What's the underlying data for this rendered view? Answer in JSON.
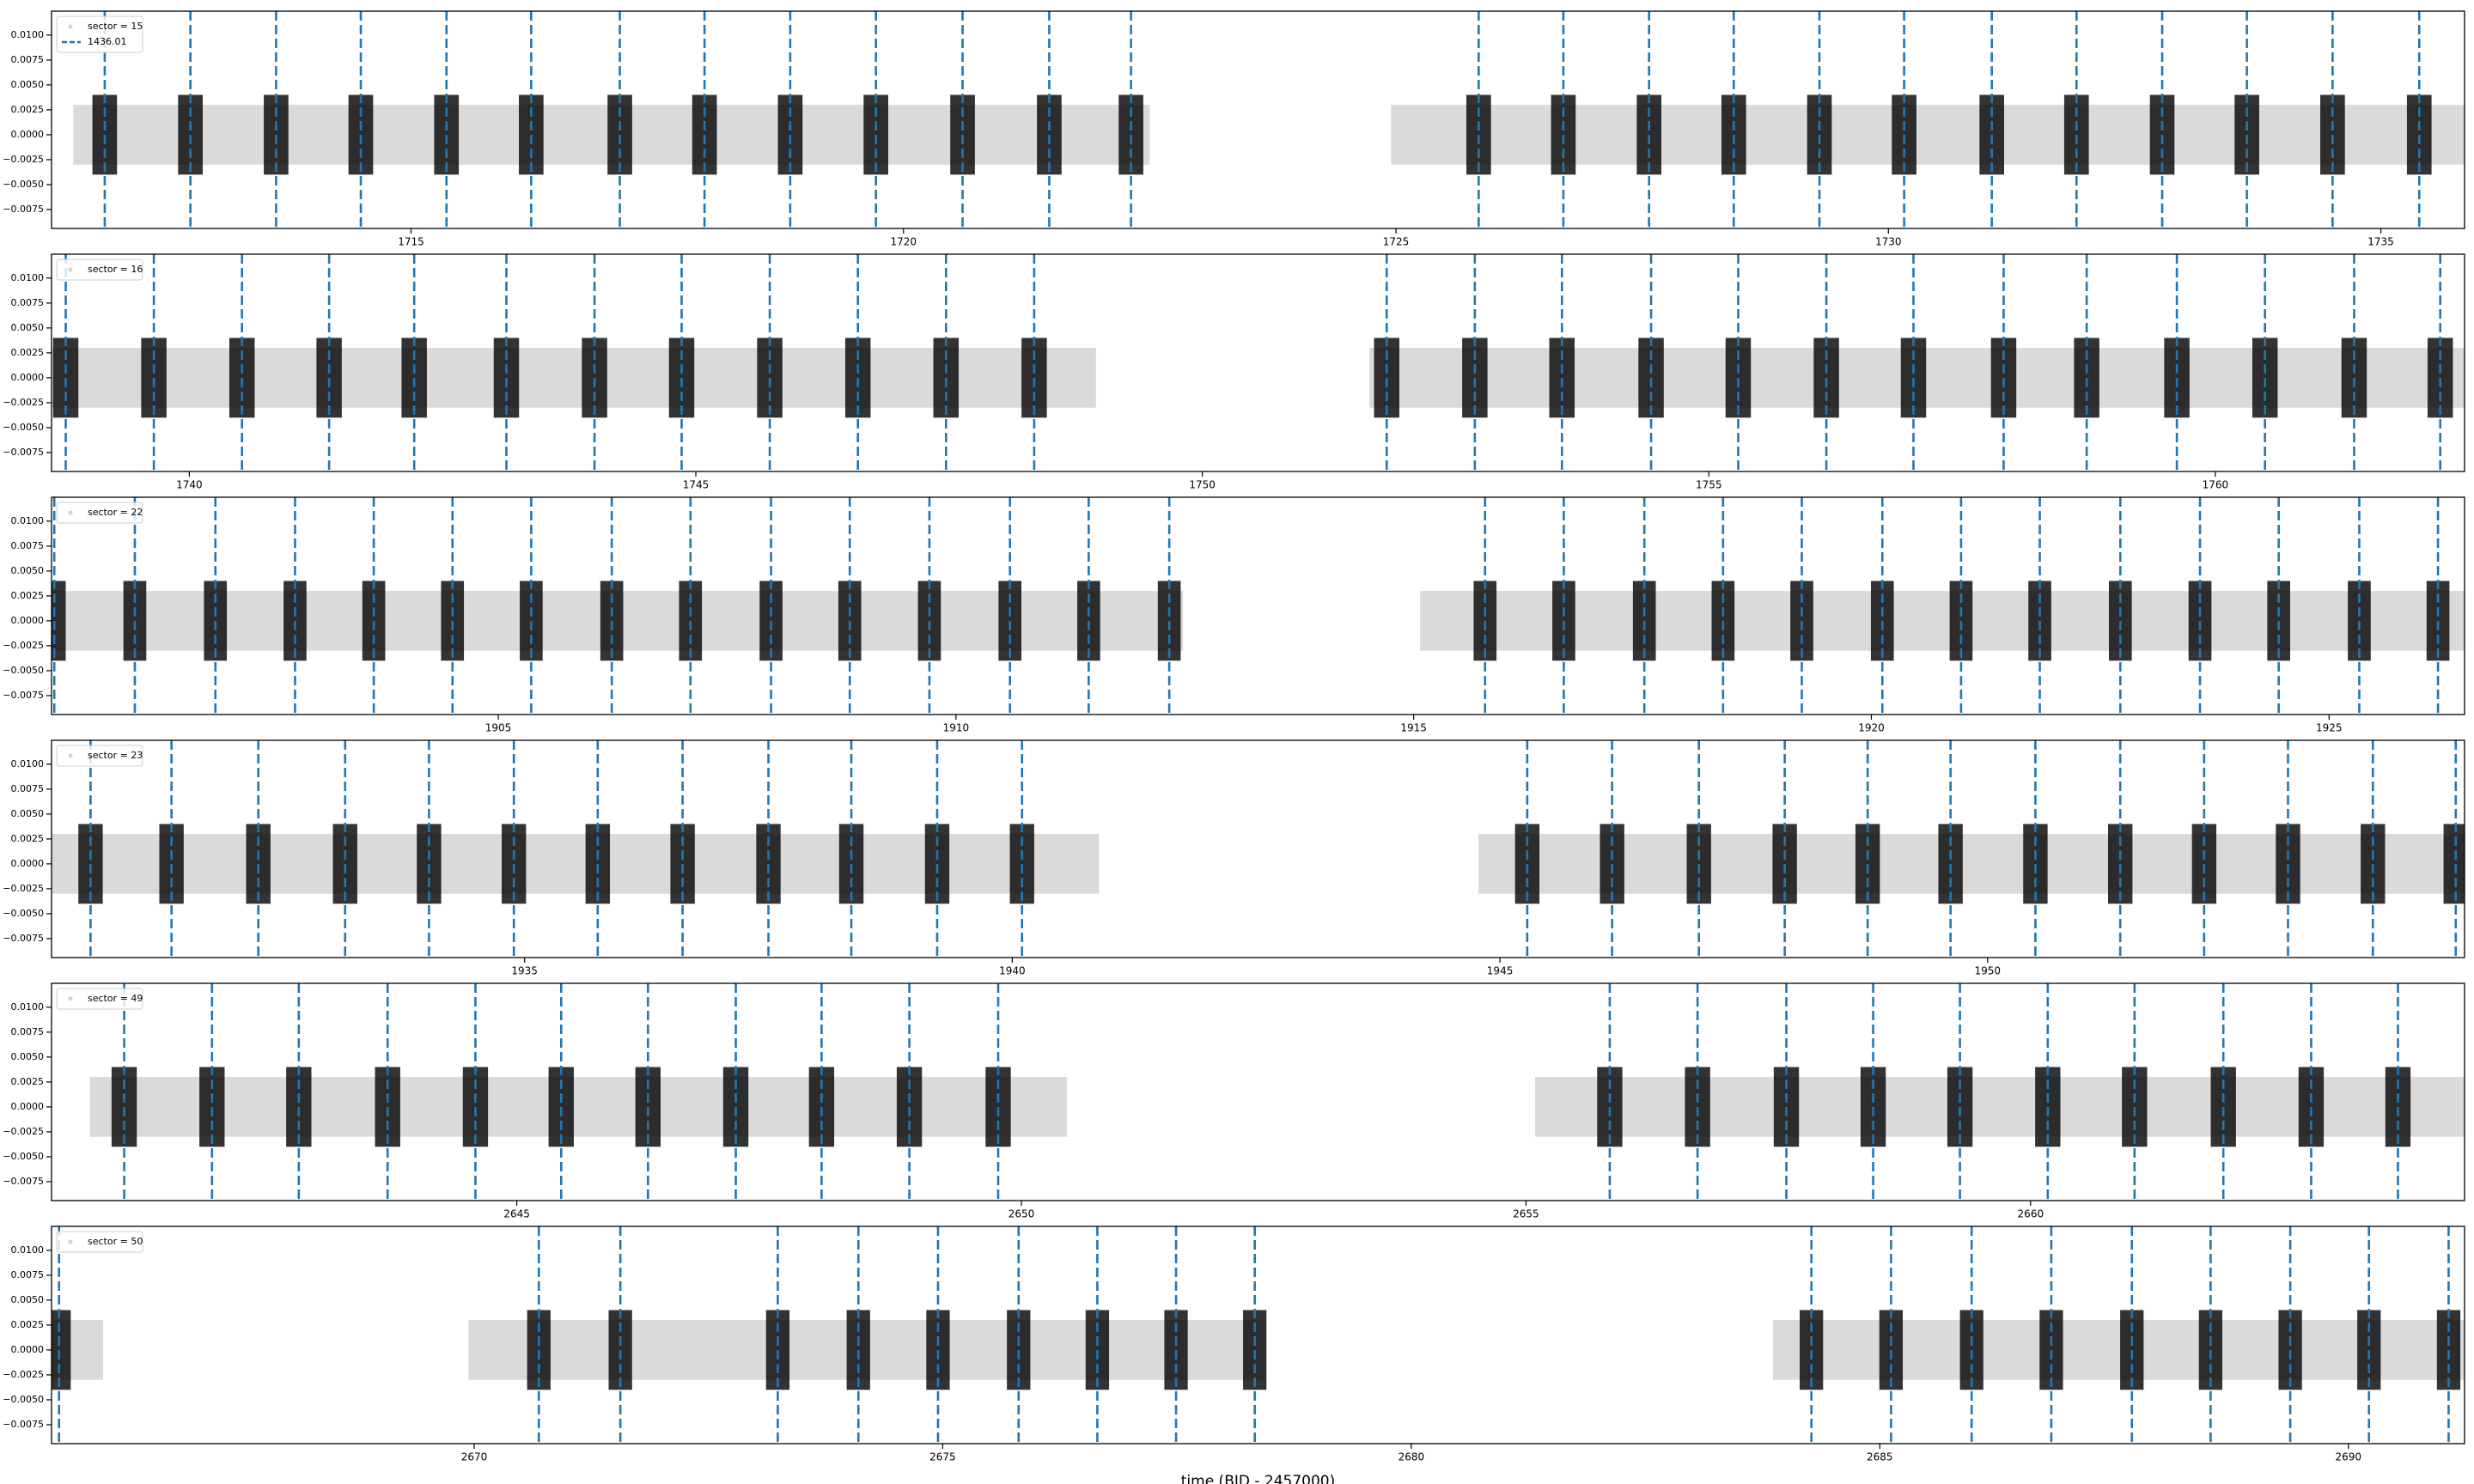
{
  "chart_data": [
    {
      "type": "scatter",
      "series": [
        {
          "name": "sector = 15",
          "color": "#d3d3d3",
          "segments": [
            [
              1711.57,
              1722.5
            ],
            [
              1724.95,
              1735.85
            ]
          ],
          "range": [
            -0.003,
            0.003
          ]
        }
      ],
      "transits": {
        "name": "1436.01",
        "color": "#1f77b4",
        "values": [
          1711.89,
          1712.76,
          1713.63,
          1714.49,
          1715.36,
          1716.22,
          1717.12,
          1717.98,
          1718.85,
          1719.72,
          1720.6,
          1721.48,
          1722.31,
          1725.84,
          1726.7,
          1727.57,
          1728.43,
          1729.3,
          1730.16,
          1731.05,
          1731.91,
          1732.78,
          1733.64,
          1734.51,
          1735.39
        ]
      },
      "in_transit": {
        "color": "#000000",
        "window": 0.25,
        "range": [
          -0.004,
          0.004
        ]
      },
      "xlim": [
        1711.35,
        1735.85
      ],
      "xticks": [
        1715,
        1720,
        1725,
        1730,
        1735
      ],
      "ylim": [
        -0.0094,
        0.0124
      ],
      "yticks": [
        {
          "value": -0.0075,
          "label": "−0.0075"
        },
        {
          "value": -0.005,
          "label": "−0.0050"
        },
        {
          "value": -0.0025,
          "label": "−0.0025"
        },
        {
          "value": 0,
          "label": "0.0000"
        },
        {
          "value": 0.0025,
          "label": "0.0025"
        },
        {
          "value": 0.005,
          "label": "0.0050"
        },
        {
          "value": 0.0075,
          "label": "0.0075"
        },
        {
          "value": 0.01,
          "label": "0.0100"
        }
      ]
    },
    {
      "type": "scatter",
      "series": [
        {
          "name": "sector = 16",
          "color": "#d3d3d3",
          "segments": [
            [
              1738.64,
              1748.95
            ],
            [
              1751.65,
              1762.46
            ]
          ],
          "range": [
            -0.003,
            0.003
          ]
        }
      ],
      "transits": {
        "color": "#1f77b4",
        "values": [
          1738.78,
          1739.65,
          1740.52,
          1741.38,
          1742.22,
          1743.13,
          1744.0,
          1744.86,
          1745.73,
          1746.6,
          1747.47,
          1748.34,
          1751.82,
          1752.69,
          1753.55,
          1754.43,
          1755.29,
          1756.16,
          1757.02,
          1757.91,
          1758.73,
          1759.62,
          1760.49,
          1761.37,
          1762.22
        ]
      },
      "in_transit": {
        "color": "#000000",
        "window": 0.25,
        "range": [
          -0.004,
          0.004
        ]
      },
      "xlim": [
        1738.64,
        1762.46
      ],
      "xticks": [
        1740,
        1745,
        1750,
        1755,
        1760
      ],
      "ylim": [
        -0.0094,
        0.0124
      ],
      "yticks": [
        {
          "value": -0.0075,
          "label": "−0.0075"
        },
        {
          "value": -0.005,
          "label": "−0.0050"
        },
        {
          "value": -0.0025,
          "label": "−0.0025"
        },
        {
          "value": 0,
          "label": "0.0000"
        },
        {
          "value": 0.0025,
          "label": "0.0025"
        },
        {
          "value": 0.005,
          "label": "0.0050"
        },
        {
          "value": 0.0075,
          "label": "0.0075"
        },
        {
          "value": 0.01,
          "label": "0.0100"
        }
      ]
    },
    {
      "type": "scatter",
      "series": [
        {
          "name": "sector = 22",
          "color": "#d3d3d3",
          "segments": [
            [
              1900.12,
              1912.48
            ],
            [
              1915.07,
              1926.48
            ]
          ],
          "range": [
            -0.003,
            0.003
          ]
        }
      ],
      "transits": {
        "color": "#1f77b4",
        "values": [
          1900.15,
          1901.03,
          1901.91,
          1902.78,
          1903.64,
          1904.5,
          1905.36,
          1906.24,
          1907.1,
          1907.98,
          1908.84,
          1909.71,
          1910.59,
          1911.45,
          1912.33,
          1915.78,
          1916.64,
          1917.52,
          1918.38,
          1919.24,
          1920.12,
          1920.98,
          1921.84,
          1922.72,
          1923.59,
          1924.45,
          1925.33,
          1926.19
        ]
      },
      "in_transit": {
        "color": "#000000",
        "window": 0.25,
        "range": [
          -0.004,
          0.004
        ]
      },
      "xlim": [
        1900.12,
        1926.48
      ],
      "xticks": [
        1905,
        1910,
        1915,
        1920,
        1925
      ],
      "ylim": [
        -0.0094,
        0.0124
      ],
      "yticks": [
        {
          "value": -0.0075,
          "label": "−0.0075"
        },
        {
          "value": -0.005,
          "label": "−0.0050"
        },
        {
          "value": -0.0025,
          "label": "−0.0025"
        },
        {
          "value": 0,
          "label": "0.0000"
        },
        {
          "value": 0.0025,
          "label": "0.0025"
        },
        {
          "value": 0.005,
          "label": "0.0050"
        },
        {
          "value": 0.0075,
          "label": "0.0075"
        },
        {
          "value": 0.01,
          "label": "0.0100"
        }
      ]
    },
    {
      "type": "scatter",
      "series": [
        {
          "name": "sector = 23",
          "color": "#d3d3d3",
          "segments": [
            [
              1930.15,
              1940.89
            ],
            [
              1944.78,
              1954.89
            ]
          ],
          "range": [
            -0.003,
            0.003
          ]
        }
      ],
      "transits": {
        "color": "#1f77b4",
        "values": [
          1930.55,
          1931.38,
          1932.27,
          1933.16,
          1934.02,
          1934.89,
          1935.75,
          1936.62,
          1937.5,
          1938.35,
          1939.23,
          1940.1,
          1945.28,
          1946.15,
          1947.04,
          1947.92,
          1948.77,
          1949.62,
          1950.49,
          1951.36,
          1952.22,
          1953.08,
          1953.95,
          1954.8
        ]
      },
      "in_transit": {
        "color": "#000000",
        "window": 0.25,
        "range": [
          -0.004,
          0.004
        ]
      },
      "xlim": [
        1930.15,
        1954.89
      ],
      "xticks": [
        1935,
        1940,
        1945,
        1950
      ],
      "ylim": [
        -0.0094,
        0.0124
      ],
      "yticks": [
        {
          "value": -0.0075,
          "label": "−0.0075"
        },
        {
          "value": -0.005,
          "label": "−0.0050"
        },
        {
          "value": -0.0025,
          "label": "−0.0025"
        },
        {
          "value": 0,
          "label": "0.0000"
        },
        {
          "value": 0.0025,
          "label": "0.0025"
        },
        {
          "value": 0.005,
          "label": "0.0050"
        },
        {
          "value": 0.0075,
          "label": "0.0075"
        },
        {
          "value": 0.01,
          "label": "0.0100"
        }
      ]
    },
    {
      "type": "scatter",
      "series": [
        {
          "name": "sector = 49",
          "color": "#d3d3d3",
          "segments": [
            [
              2640.77,
              2650.45
            ],
            [
              2655.09,
              2664.3
            ]
          ],
          "range": [
            -0.003,
            0.003
          ]
        }
      ],
      "transits": {
        "color": "#1f77b4",
        "values": [
          2641.11,
          2641.98,
          2642.84,
          2643.72,
          2644.59,
          2645.44,
          2646.3,
          2647.17,
          2648.02,
          2648.89,
          2649.77,
          2655.83,
          2656.7,
          2657.58,
          2658.44,
          2659.3,
          2660.17,
          2661.03,
          2661.91,
          2662.78,
          2663.64
        ]
      },
      "in_transit": {
        "color": "#000000",
        "window": 0.25,
        "range": [
          -0.004,
          0.004
        ]
      },
      "xlim": [
        2640.39,
        2664.3
      ],
      "xticks": [
        2645,
        2650,
        2655,
        2660
      ],
      "ylim": [
        -0.0094,
        0.0124
      ],
      "yticks": [
        {
          "value": -0.0075,
          "label": "−0.0075"
        },
        {
          "value": -0.005,
          "label": "−0.0050"
        },
        {
          "value": -0.0025,
          "label": "−0.0025"
        },
        {
          "value": 0,
          "label": "0.0000"
        },
        {
          "value": 0.0025,
          "label": "0.0025"
        },
        {
          "value": 0.005,
          "label": "0.0050"
        },
        {
          "value": 0.0075,
          "label": "0.0075"
        },
        {
          "value": 0.01,
          "label": "0.0100"
        }
      ]
    },
    {
      "type": "scatter",
      "series": [
        {
          "name": "sector = 50",
          "color": "#d3d3d3",
          "segments": [
            [
              2665.49,
              2666.04
            ],
            [
              2669.94,
              2672.52
            ],
            [
              2672.52,
              2678.44
            ],
            [
              2683.86,
              2691.24
            ]
          ],
          "range": [
            -0.003,
            0.003
          ]
        }
      ],
      "transits": {
        "color": "#1f77b4",
        "values": [
          2665.57,
          2670.69,
          2671.56,
          2673.24,
          2674.1,
          2674.95,
          2675.81,
          2676.65,
          2677.49,
          2678.33,
          2684.27,
          2685.12,
          2685.98,
          2686.83,
          2687.69,
          2688.53,
          2689.38,
          2690.22,
          2691.07
        ]
      },
      "in_transit": {
        "color": "#000000",
        "window": 0.25,
        "range": [
          -0.004,
          0.004
        ]
      },
      "xlim": [
        2665.49,
        2691.24
      ],
      "xticks": [
        2670,
        2675,
        2680,
        2685,
        2690
      ],
      "ylim": [
        -0.0094,
        0.0124
      ],
      "yticks": [
        {
          "value": -0.0075,
          "label": "−0.0075"
        },
        {
          "value": -0.005,
          "label": "−0.0050"
        },
        {
          "value": -0.0025,
          "label": "−0.0025"
        },
        {
          "value": 0,
          "label": "0.0000"
        },
        {
          "value": 0.0025,
          "label": "0.0025"
        },
        {
          "value": 0.005,
          "label": "0.0050"
        },
        {
          "value": 0.0075,
          "label": "0.0075"
        },
        {
          "value": 0.01,
          "label": "0.0100"
        }
      ],
      "xlabel": "time (BJD - 2457000)"
    }
  ]
}
